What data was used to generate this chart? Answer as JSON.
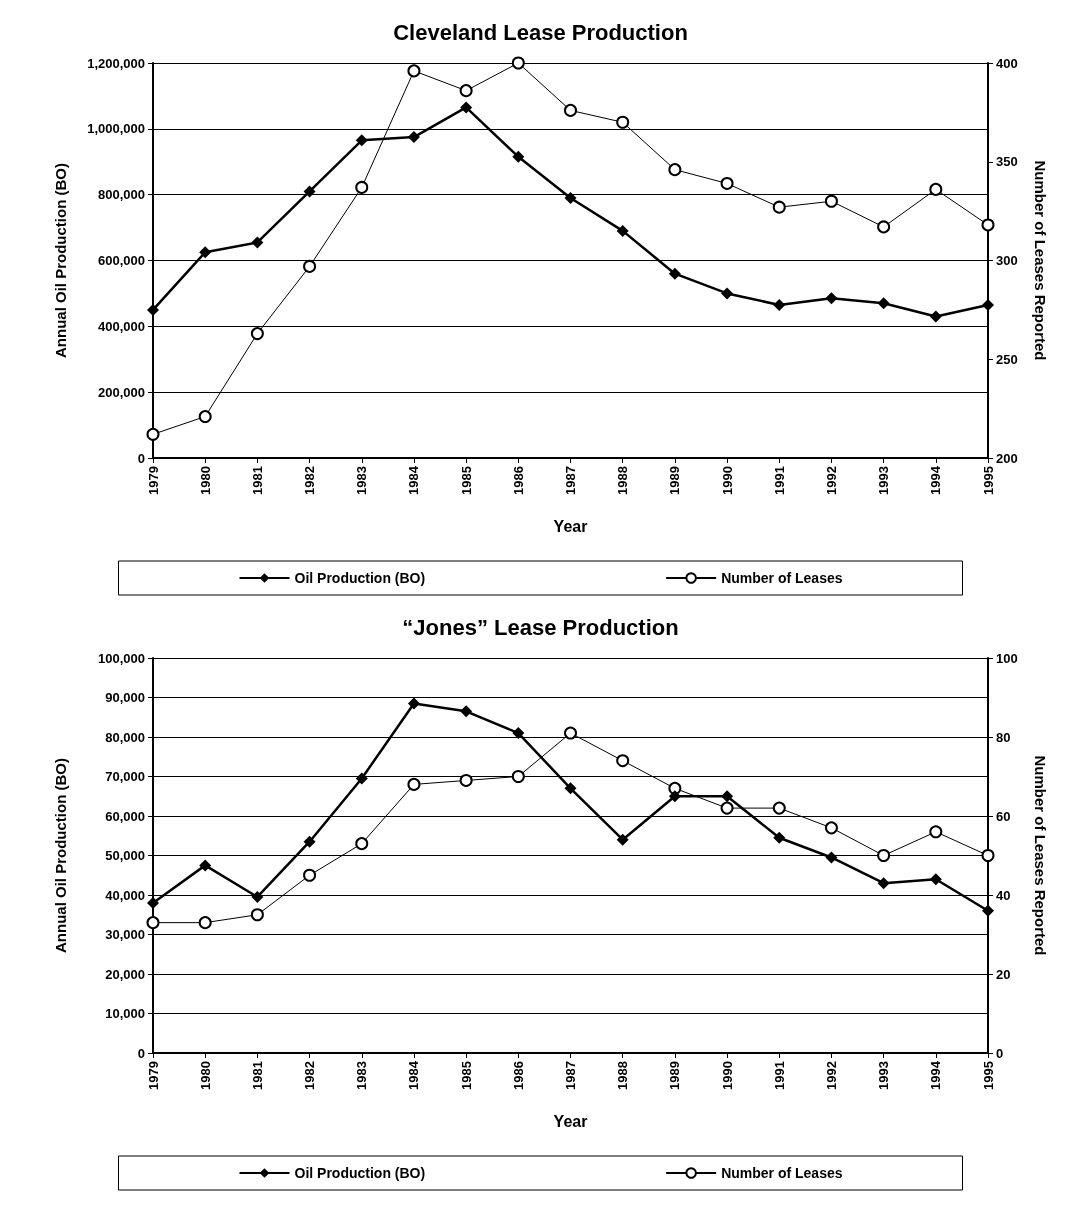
{
  "chart_data": [
    {
      "type": "line",
      "title": "Cleveland Lease Production",
      "xlabel": "Year",
      "ylabel": "Annual Oil Production (BO)",
      "y2label": "Number of Leases Reported",
      "categories": [
        "1979",
        "1980",
        "1981",
        "1982",
        "1983",
        "1984",
        "1985",
        "1986",
        "1987",
        "1988",
        "1989",
        "1990",
        "1991",
        "1992",
        "1993",
        "1994",
        "1995"
      ],
      "series": [
        {
          "name": "Oil Production (BO)",
          "color": "#000000",
          "marker": "diamond",
          "values": [
            450000,
            625000,
            655000,
            810000,
            965000,
            975000,
            1065000,
            915000,
            790000,
            690000,
            560000,
            500000,
            465000,
            485000,
            470000,
            430000,
            465000
          ]
        },
        {
          "name": "Number of Leases",
          "color": "#000000",
          "marker": "circle",
          "axis": "y2",
          "values": [
            212,
            221,
            263,
            297,
            337,
            396,
            386,
            400,
            376,
            370,
            346,
            339,
            327,
            330,
            317,
            336,
            318
          ]
        }
      ],
      "ylim": [
        0,
        1200000
      ],
      "yticks": [
        {
          "value": 0,
          "label": "0"
        },
        {
          "value": 200000,
          "label": "200,000"
        },
        {
          "value": 400000,
          "label": "400,000"
        },
        {
          "value": 600000,
          "label": "600,000"
        },
        {
          "value": 800000,
          "label": "800,000"
        },
        {
          "value": 1000000,
          "label": "1,000,000"
        },
        {
          "value": 1200000,
          "label": "1,200,000"
        }
      ],
      "y2lim": [
        200,
        400
      ],
      "y2ticks": [
        200,
        250,
        300,
        350,
        400
      ],
      "grid": "y",
      "legend": "bottom"
    },
    {
      "type": "line",
      "title": "“Jones” Lease Production",
      "xlabel": "Year",
      "ylabel": "Annual Oil Production (BO)",
      "y2label": "Number of Leases Reported",
      "categories": [
        "1979",
        "1980",
        "1981",
        "1982",
        "1983",
        "1984",
        "1985",
        "1986",
        "1987",
        "1988",
        "1989",
        "1990",
        "1991",
        "1992",
        "1993",
        "1994",
        "1995"
      ],
      "series": [
        {
          "name": "Oil Production (BO)",
          "color": "#000000",
          "marker": "diamond",
          "values": [
            38000,
            47500,
            39500,
            53500,
            69500,
            88500,
            86500,
            81000,
            67000,
            54000,
            65000,
            65000,
            54500,
            49500,
            43000,
            44000,
            36000
          ]
        },
        {
          "name": "Number of Leases",
          "color": "#000000",
          "marker": "circle",
          "axis": "y2",
          "values": [
            33,
            33,
            35,
            45,
            53,
            68,
            69,
            70,
            81,
            74,
            67,
            62,
            62,
            57,
            50,
            56,
            50
          ]
        }
      ],
      "ylim": [
        0,
        100000
      ],
      "yticks": [
        {
          "value": 0,
          "label": "0"
        },
        {
          "value": 10000,
          "label": "10,000"
        },
        {
          "value": 20000,
          "label": "20,000"
        },
        {
          "value": 30000,
          "label": "30,000"
        },
        {
          "value": 40000,
          "label": "40,000"
        },
        {
          "value": 50000,
          "label": "50,000"
        },
        {
          "value": 60000,
          "label": "60,000"
        },
        {
          "value": 70000,
          "label": "70,000"
        },
        {
          "value": 80000,
          "label": "80,000"
        },
        {
          "value": 90000,
          "label": "90,000"
        },
        {
          "value": 100000,
          "label": "100,000"
        }
      ],
      "y2lim": [
        0,
        100
      ],
      "y2ticks": [
        0,
        20,
        40,
        60,
        80,
        100
      ],
      "grid": "y",
      "legend": "bottom"
    }
  ]
}
